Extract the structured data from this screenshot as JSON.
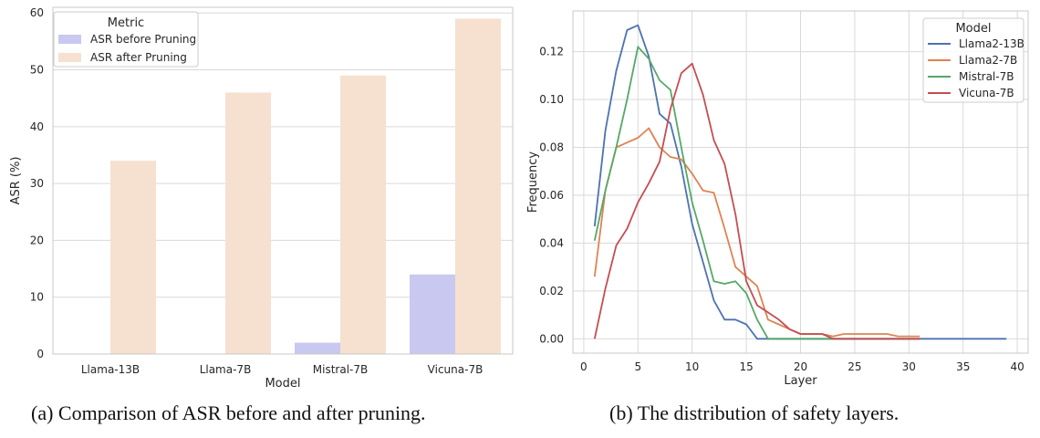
{
  "captions": {
    "a": "(a)  Comparison of ASR before and after pruning.",
    "b": "(b)  The distribution of safety layers."
  },
  "chart_data": [
    {
      "type": "bar",
      "title": "",
      "xlabel": "Model",
      "ylabel": "ASR (%)",
      "ylim": [
        0,
        61
      ],
      "yticks": [
        0,
        10,
        20,
        30,
        40,
        50,
        60
      ],
      "grid": true,
      "categories": [
        "Llama-13B",
        "Llama-7B",
        "Mistral-7B",
        "Vicuna-7B"
      ],
      "legend": {
        "title": "Metric",
        "position": "top-left"
      },
      "series": [
        {
          "name": "ASR before Pruning",
          "color": "#c9c8f0",
          "values": [
            0,
            0,
            2,
            14
          ]
        },
        {
          "name": "ASR after Pruning",
          "color": "#f6e0d0",
          "values": [
            34,
            46,
            49,
            59
          ]
        }
      ]
    },
    {
      "type": "line",
      "title": "",
      "xlabel": "Layer",
      "ylabel": "Frequency",
      "xlim": [
        -1,
        41
      ],
      "ylim": [
        -0.006,
        0.137
      ],
      "xticks": [
        0,
        5,
        10,
        15,
        20,
        25,
        30,
        35,
        40
      ],
      "yticks": [
        0.0,
        0.02,
        0.04,
        0.06,
        0.08,
        0.1,
        0.12
      ],
      "ytick_labels": [
        "0.00",
        "0.02",
        "0.04",
        "0.06",
        "0.08",
        "0.10",
        "0.12"
      ],
      "grid": true,
      "legend": {
        "title": "Model",
        "position": "top-right"
      },
      "series": [
        {
          "name": "Llama2-13B",
          "color": "#4c72b0",
          "x": [
            1,
            2,
            3,
            4,
            5,
            6,
            7,
            8,
            9,
            10,
            11,
            12,
            13,
            14,
            15,
            16,
            17,
            18,
            19,
            20,
            21,
            22,
            23,
            24,
            25,
            26,
            27,
            28,
            29,
            30,
            31,
            32,
            33,
            34,
            35,
            36,
            37,
            38,
            39
          ],
          "y": [
            0.047,
            0.087,
            0.112,
            0.129,
            0.131,
            0.118,
            0.094,
            0.09,
            0.072,
            0.048,
            0.032,
            0.016,
            0.008,
            0.008,
            0.006,
            0,
            0,
            0,
            0,
            0,
            0,
            0,
            0,
            0,
            0,
            0,
            0,
            0,
            0,
            0,
            0,
            0,
            0,
            0,
            0,
            0,
            0,
            0,
            0
          ]
        },
        {
          "name": "Llama2-7B",
          "color": "#dd8452",
          "x": [
            1,
            2,
            3,
            4,
            5,
            6,
            7,
            8,
            9,
            10,
            11,
            12,
            13,
            14,
            15,
            16,
            17,
            18,
            19,
            20,
            21,
            22,
            23,
            24,
            25,
            26,
            27,
            28,
            29,
            30,
            31
          ],
          "y": [
            0.026,
            0.062,
            0.08,
            0.082,
            0.084,
            0.088,
            0.08,
            0.076,
            0.075,
            0.069,
            0.062,
            0.061,
            0.046,
            0.03,
            0.026,
            0.022,
            0.008,
            0.006,
            0.004,
            0.002,
            0.002,
            0.002,
            0.001,
            0.002,
            0.002,
            0.002,
            0.002,
            0.002,
            0.001,
            0.001,
            0.001
          ]
        },
        {
          "name": "Mistral-7B",
          "color": "#55a868",
          "x": [
            1,
            2,
            3,
            4,
            5,
            6,
            7,
            8,
            9,
            10,
            11,
            12,
            13,
            14,
            15,
            16,
            17,
            18,
            19,
            20,
            21,
            22,
            23,
            24,
            25,
            26,
            27,
            28,
            29,
            30,
            31
          ],
          "y": [
            0.041,
            0.062,
            0.08,
            0.1,
            0.122,
            0.117,
            0.108,
            0.104,
            0.08,
            0.057,
            0.041,
            0.024,
            0.023,
            0.024,
            0.019,
            0.008,
            0,
            0,
            0,
            0,
            0,
            0,
            0,
            0,
            0,
            0,
            0,
            0,
            0,
            0,
            0
          ]
        },
        {
          "name": "Vicuna-7B",
          "color": "#c44e52",
          "x": [
            1,
            2,
            3,
            4,
            5,
            6,
            7,
            8,
            9,
            10,
            11,
            12,
            13,
            14,
            15,
            16,
            17,
            18,
            19,
            20,
            21,
            22,
            23,
            24,
            25,
            26,
            27,
            28,
            29,
            30,
            31
          ],
          "y": [
            0,
            0.021,
            0.039,
            0.046,
            0.057,
            0.065,
            0.074,
            0.096,
            0.111,
            0.115,
            0.102,
            0.083,
            0.073,
            0.052,
            0.024,
            0.014,
            0.011,
            0.008,
            0.004,
            0.002,
            0.002,
            0.002,
            0,
            0,
            0,
            0,
            0,
            0,
            0,
            0,
            0
          ]
        }
      ]
    }
  ]
}
